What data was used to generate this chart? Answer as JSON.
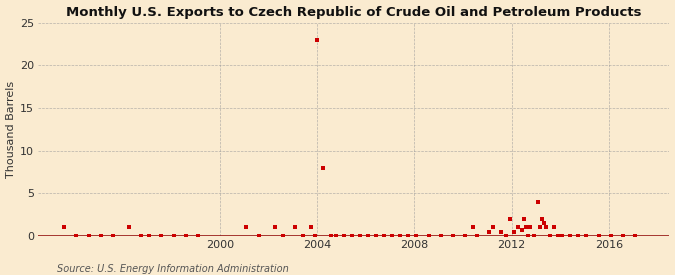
{
  "title": "Monthly U.S. Exports to Czech Republic of Crude Oil and Petroleum Products",
  "ylabel": "Thousand Barrels",
  "source": "Source: U.S. Energy Information Administration",
  "background_color": "#faebd0",
  "plot_background_color": "#faebd0",
  "dot_color": "#cc0000",
  "dot_size": 5,
  "ylim": [
    0,
    25
  ],
  "yticks": [
    0,
    5,
    10,
    15,
    20,
    25
  ],
  "xlim_start": 1992.5,
  "xlim_end": 2018.5,
  "xticks": [
    2000,
    2004,
    2008,
    2012,
    2016
  ],
  "grid_color": "#999999",
  "baseline_color": "#8b0000",
  "data_points": [
    [
      1993.583,
      1.0
    ],
    [
      1994.083,
      0.05
    ],
    [
      1994.583,
      0.05
    ],
    [
      1995.083,
      0.05
    ],
    [
      1995.583,
      0.05
    ],
    [
      1996.25,
      1.0
    ],
    [
      1996.75,
      0.05
    ],
    [
      1997.083,
      0.05
    ],
    [
      1997.583,
      0.05
    ],
    [
      1998.083,
      0.05
    ],
    [
      1998.583,
      0.05
    ],
    [
      1999.083,
      0.05
    ],
    [
      2001.083,
      1.0
    ],
    [
      2001.583,
      0.05
    ],
    [
      2002.25,
      1.0
    ],
    [
      2002.583,
      0.05
    ],
    [
      2003.083,
      1.0
    ],
    [
      2003.417,
      0.05
    ],
    [
      2003.75,
      1.0
    ],
    [
      2003.917,
      0.05
    ],
    [
      2004.0,
      23.0
    ],
    [
      2004.25,
      8.0
    ],
    [
      2004.583,
      0.05
    ],
    [
      2004.75,
      0.05
    ],
    [
      2005.083,
      0.05
    ],
    [
      2005.417,
      0.05
    ],
    [
      2005.75,
      0.05
    ],
    [
      2006.083,
      0.05
    ],
    [
      2006.417,
      0.05
    ],
    [
      2006.75,
      0.05
    ],
    [
      2007.083,
      0.05
    ],
    [
      2007.417,
      0.05
    ],
    [
      2007.75,
      0.05
    ],
    [
      2008.083,
      0.05
    ],
    [
      2008.583,
      0.05
    ],
    [
      2009.083,
      0.05
    ],
    [
      2009.583,
      0.05
    ],
    [
      2010.083,
      0.05
    ],
    [
      2010.417,
      1.0
    ],
    [
      2010.583,
      0.05
    ],
    [
      2011.083,
      0.5
    ],
    [
      2011.25,
      1.0
    ],
    [
      2011.583,
      0.5
    ],
    [
      2011.75,
      0.05
    ],
    [
      2011.917,
      2.0
    ],
    [
      2012.083,
      0.5
    ],
    [
      2012.25,
      1.0
    ],
    [
      2012.417,
      0.7
    ],
    [
      2012.5,
      2.0
    ],
    [
      2012.583,
      1.0
    ],
    [
      2012.667,
      0.05
    ],
    [
      2012.75,
      1.0
    ],
    [
      2012.917,
      0.05
    ],
    [
      2013.083,
      4.0
    ],
    [
      2013.167,
      1.0
    ],
    [
      2013.25,
      2.0
    ],
    [
      2013.333,
      1.5
    ],
    [
      2013.417,
      1.0
    ],
    [
      2013.583,
      0.05
    ],
    [
      2013.75,
      1.0
    ],
    [
      2013.917,
      0.05
    ],
    [
      2014.083,
      0.05
    ],
    [
      2014.417,
      0.05
    ],
    [
      2014.75,
      0.05
    ],
    [
      2015.083,
      0.05
    ],
    [
      2015.583,
      0.05
    ],
    [
      2016.083,
      0.05
    ],
    [
      2016.583,
      0.05
    ],
    [
      2017.083,
      0.05
    ]
  ]
}
